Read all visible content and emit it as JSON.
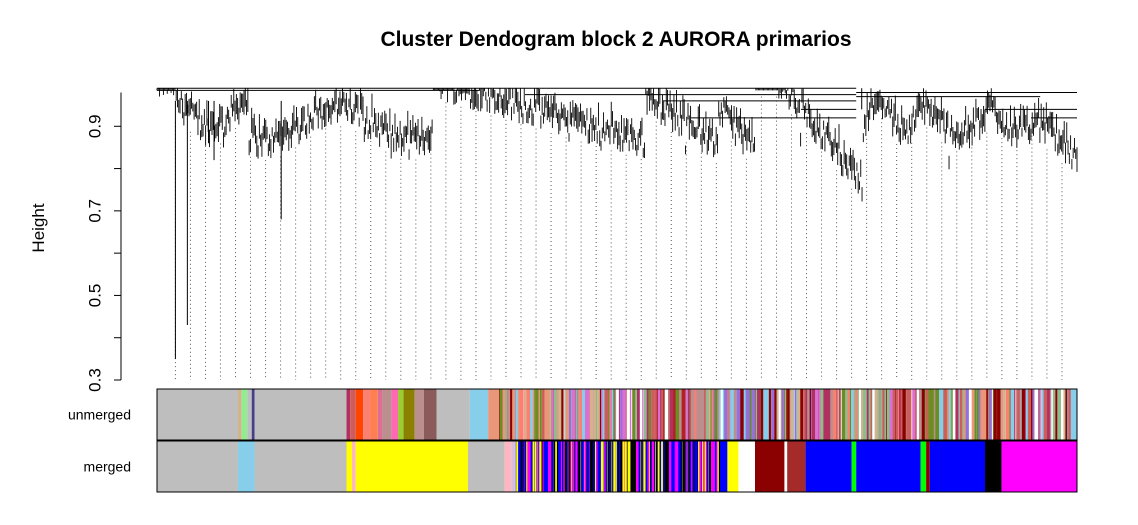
{
  "chart_data": {
    "type": "dendrogram",
    "title": "Cluster Dendogram block 2 AURORA primarios",
    "ylabel": "Height",
    "xlabel": "",
    "ylim": [
      0.3,
      1.0
    ],
    "yticks": [
      0.3,
      0.5,
      0.7,
      0.9
    ],
    "ytick_labels": [
      "0.3",
      "0.5",
      "0.7",
      "0.9"
    ],
    "grid": false,
    "color_rows": [
      {
        "label": "unmerged",
        "segments": [
          {
            "start": 0.0,
            "end": 0.088,
            "color": "#BEBEBE"
          },
          {
            "start": 0.088,
            "end": 0.092,
            "color": "#D2B48C"
          },
          {
            "start": 0.092,
            "end": 0.098,
            "color": "#90EE90"
          },
          {
            "start": 0.098,
            "end": 0.103,
            "color": "#BEBEBE"
          },
          {
            "start": 0.103,
            "end": 0.106,
            "color": "#483D8B"
          },
          {
            "start": 0.106,
            "end": 0.206,
            "color": "#BEBEBE"
          },
          {
            "start": 0.206,
            "end": 0.21,
            "color": "#B03060"
          },
          {
            "start": 0.21,
            "end": 0.216,
            "color": "#CD5C5C"
          },
          {
            "start": 0.216,
            "end": 0.224,
            "color": "#FF4500"
          },
          {
            "start": 0.224,
            "end": 0.232,
            "color": "#FA8072"
          },
          {
            "start": 0.232,
            "end": 0.24,
            "color": "#FF7F50"
          },
          {
            "start": 0.24,
            "end": 0.245,
            "color": "#DB7093"
          },
          {
            "start": 0.245,
            "end": 0.255,
            "color": "#BC8F8F"
          },
          {
            "start": 0.255,
            "end": 0.262,
            "color": "#FF69B4"
          },
          {
            "start": 0.262,
            "end": 0.268,
            "color": "#9ACD32"
          },
          {
            "start": 0.268,
            "end": 0.28,
            "color": "#8B8000"
          },
          {
            "start": 0.28,
            "end": 0.29,
            "color": "#BC8F8F"
          },
          {
            "start": 0.29,
            "end": 0.304,
            "color": "#8B5A5A"
          },
          {
            "start": 0.304,
            "end": 0.34,
            "color": "#BEBEBE"
          },
          {
            "start": 0.34,
            "end": 0.36,
            "color": "#87CEEB"
          },
          {
            "start": 0.36,
            "end": 0.46,
            "color": "#E9967A"
          },
          {
            "start": 0.46,
            "end": 0.53,
            "color": "#DA70D6"
          },
          {
            "start": 0.53,
            "end": 0.58,
            "color": "#B22222"
          },
          {
            "start": 0.58,
            "end": 0.63,
            "color": "#BC8F8F"
          },
          {
            "start": 0.63,
            "end": 0.65,
            "color": "#9370DB"
          },
          {
            "start": 0.65,
            "end": 0.685,
            "color": "#8B0000"
          },
          {
            "start": 0.685,
            "end": 0.7,
            "color": "#FFFFFF"
          },
          {
            "start": 0.7,
            "end": 0.745,
            "color": "#B03060"
          },
          {
            "start": 0.745,
            "end": 0.79,
            "color": "#8FBC8F"
          },
          {
            "start": 0.79,
            "end": 0.835,
            "color": "#CD5C5C"
          },
          {
            "start": 0.835,
            "end": 0.87,
            "color": "#6B8E23"
          },
          {
            "start": 0.87,
            "end": 0.92,
            "color": "#E9967A"
          },
          {
            "start": 0.92,
            "end": 0.97,
            "color": "#D8BFD8"
          },
          {
            "start": 0.97,
            "end": 1.0,
            "color": "#87CEEB"
          }
        ]
      },
      {
        "label": "merged",
        "segments": [
          {
            "start": 0.0,
            "end": 0.088,
            "color": "#BEBEBE"
          },
          {
            "start": 0.088,
            "end": 0.106,
            "color": "#87CEEB"
          },
          {
            "start": 0.106,
            "end": 0.206,
            "color": "#BEBEBE"
          },
          {
            "start": 0.206,
            "end": 0.212,
            "color": "#FFFF00"
          },
          {
            "start": 0.212,
            "end": 0.216,
            "color": "#FFB6C1"
          },
          {
            "start": 0.216,
            "end": 0.338,
            "color": "#FFFF00"
          },
          {
            "start": 0.338,
            "end": 0.378,
            "color": "#BEBEBE"
          },
          {
            "start": 0.378,
            "end": 0.385,
            "color": "#FFB6C1"
          },
          {
            "start": 0.385,
            "end": 0.39,
            "color": "#D8BFD8"
          },
          {
            "start": 0.39,
            "end": 0.59,
            "color": "#0000FF"
          },
          {
            "start": 0.59,
            "end": 0.6,
            "color": "#FFFF00"
          },
          {
            "start": 0.6,
            "end": 0.62,
            "color": "#0000FF"
          },
          {
            "start": 0.62,
            "end": 0.632,
            "color": "#FFFF00"
          },
          {
            "start": 0.632,
            "end": 0.65,
            "color": "#FFFFFF"
          },
          {
            "start": 0.65,
            "end": 0.682,
            "color": "#8B0000"
          },
          {
            "start": 0.682,
            "end": 0.685,
            "color": "#FFFFFF"
          },
          {
            "start": 0.685,
            "end": 0.705,
            "color": "#A52A2A"
          },
          {
            "start": 0.705,
            "end": 0.755,
            "color": "#0000FF"
          },
          {
            "start": 0.755,
            "end": 0.76,
            "color": "#00FF00"
          },
          {
            "start": 0.76,
            "end": 0.83,
            "color": "#0000FF"
          },
          {
            "start": 0.83,
            "end": 0.836,
            "color": "#00FF00"
          },
          {
            "start": 0.836,
            "end": 0.84,
            "color": "#8B0000"
          },
          {
            "start": 0.84,
            "end": 0.9,
            "color": "#0000FF"
          },
          {
            "start": 0.9,
            "end": 0.918,
            "color": "#000000"
          },
          {
            "start": 0.918,
            "end": 0.95,
            "color": "#FF00FF"
          },
          {
            "start": 0.95,
            "end": 1.0,
            "color": "#FF00FF"
          }
        ]
      }
    ]
  },
  "colors": {
    "line": "#000000",
    "guide": "#555555",
    "background": "#FFFFFF"
  }
}
